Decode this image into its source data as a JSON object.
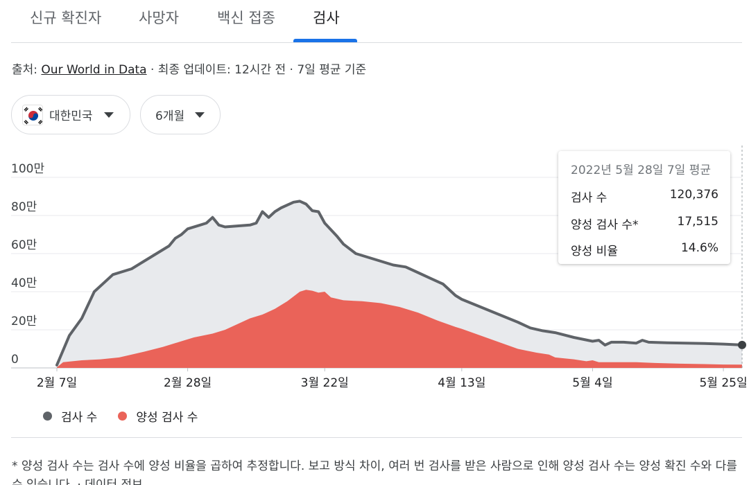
{
  "tabs": [
    {
      "label": "신규 확진자",
      "active": false
    },
    {
      "label": "사망자",
      "active": false
    },
    {
      "label": "백신 접종",
      "active": false
    },
    {
      "label": "검사",
      "active": true
    }
  ],
  "source": {
    "prefix": "출처: ",
    "link": "Our World in Data",
    "suffix": " · 최종 업데이트: 12시간 전 · 7일 평균 기준"
  },
  "filters": {
    "country": "대한민국",
    "period": "6개월"
  },
  "colors": {
    "tests_line": "#5f6368",
    "tests_fill": "#e8eaed",
    "positive_fill": "#ea6359",
    "tab_active": "#1a73e8"
  },
  "tooltip": {
    "title": "2022년 5월 28일 7일 평균",
    "rows": [
      {
        "label": "검사 수",
        "value": "120,376"
      },
      {
        "label": "양성 검사 수*",
        "value": "17,515"
      },
      {
        "label": "양성 비율",
        "value": "14.6%"
      }
    ]
  },
  "legend": [
    {
      "label": "검사 수",
      "color": "#5f6368"
    },
    {
      "label": "양성 검사 수",
      "color": "#ea6359"
    }
  ],
  "footnote": "* 양성 검사 수는 검사 수에 양성 비율을 곱하여 추정합니다. 보고 방식 차이, 여러 번 검사를 받은 사람으로 인해 양성 검사 수는 양성 확진 수와 다를 수 있습니다. · 데이터 정보",
  "chart_data": {
    "type": "area",
    "x_start": "2022-02-07",
    "x_end": "2022-05-28",
    "ylim": [
      0,
      1000000
    ],
    "y_ticks": [
      {
        "value": 0,
        "label": "0"
      },
      {
        "value": 200000,
        "label": "20만"
      },
      {
        "value": 400000,
        "label": "40만"
      },
      {
        "value": 600000,
        "label": "60만"
      },
      {
        "value": 800000,
        "label": "80만"
      },
      {
        "value": 1000000,
        "label": "100만"
      }
    ],
    "x_ticks": [
      {
        "date": "2022-02-07",
        "label": "2월 7일"
      },
      {
        "date": "2022-02-28",
        "label": "2월 28일"
      },
      {
        "date": "2022-03-22",
        "label": "3월 22일"
      },
      {
        "date": "2022-04-13",
        "label": "4월 13일"
      },
      {
        "date": "2022-05-04",
        "label": "5월 4일"
      },
      {
        "date": "2022-05-25",
        "label": "5월 25일"
      }
    ],
    "grid": true,
    "series": [
      {
        "name": "검사 수",
        "points": [
          [
            "2022-02-07",
            15000
          ],
          [
            "2022-02-09",
            170000
          ],
          [
            "2022-02-11",
            260000
          ],
          [
            "2022-02-13",
            400000
          ],
          [
            "2022-02-16",
            490000
          ],
          [
            "2022-02-19",
            520000
          ],
          [
            "2022-02-21",
            560000
          ],
          [
            "2022-02-23",
            600000
          ],
          [
            "2022-02-25",
            640000
          ],
          [
            "2022-02-26",
            680000
          ],
          [
            "2022-02-27",
            700000
          ],
          [
            "2022-02-28",
            730000
          ],
          [
            "2022-03-02",
            750000
          ],
          [
            "2022-03-03",
            760000
          ],
          [
            "2022-03-04",
            790000
          ],
          [
            "2022-03-05",
            750000
          ],
          [
            "2022-03-06",
            740000
          ],
          [
            "2022-03-08",
            745000
          ],
          [
            "2022-03-10",
            750000
          ],
          [
            "2022-03-11",
            760000
          ],
          [
            "2022-03-12",
            820000
          ],
          [
            "2022-03-13",
            790000
          ],
          [
            "2022-03-14",
            820000
          ],
          [
            "2022-03-15",
            840000
          ],
          [
            "2022-03-17",
            870000
          ],
          [
            "2022-03-18",
            875000
          ],
          [
            "2022-03-19",
            860000
          ],
          [
            "2022-03-20",
            825000
          ],
          [
            "2022-03-21",
            820000
          ],
          [
            "2022-03-22",
            760000
          ],
          [
            "2022-03-24",
            690000
          ],
          [
            "2022-03-25",
            650000
          ],
          [
            "2022-03-27",
            600000
          ],
          [
            "2022-03-29",
            580000
          ],
          [
            "2022-03-31",
            560000
          ],
          [
            "2022-04-02",
            540000
          ],
          [
            "2022-04-04",
            530000
          ],
          [
            "2022-04-06",
            500000
          ],
          [
            "2022-04-08",
            470000
          ],
          [
            "2022-04-10",
            440000
          ],
          [
            "2022-04-12",
            380000
          ],
          [
            "2022-04-13",
            360000
          ],
          [
            "2022-04-16",
            320000
          ],
          [
            "2022-04-19",
            280000
          ],
          [
            "2022-04-22",
            240000
          ],
          [
            "2022-04-24",
            210000
          ],
          [
            "2022-04-26",
            195000
          ],
          [
            "2022-04-28",
            185000
          ],
          [
            "2022-05-01",
            160000
          ],
          [
            "2022-05-04",
            140000
          ],
          [
            "2022-05-05",
            145000
          ],
          [
            "2022-05-06",
            120000
          ],
          [
            "2022-05-07",
            135000
          ],
          [
            "2022-05-09",
            135000
          ],
          [
            "2022-05-11",
            130000
          ],
          [
            "2022-05-12",
            145000
          ],
          [
            "2022-05-13",
            135000
          ],
          [
            "2022-05-16",
            132000
          ],
          [
            "2022-05-19",
            130000
          ],
          [
            "2022-05-22",
            128000
          ],
          [
            "2022-05-25",
            125000
          ],
          [
            "2022-05-28",
            120376
          ]
        ]
      },
      {
        "name": "양성 검사 수",
        "points": [
          [
            "2022-02-07",
            3000
          ],
          [
            "2022-02-08",
            30000
          ],
          [
            "2022-02-11",
            40000
          ],
          [
            "2022-02-14",
            45000
          ],
          [
            "2022-02-17",
            55000
          ],
          [
            "2022-02-19",
            70000
          ],
          [
            "2022-02-21",
            85000
          ],
          [
            "2022-02-24",
            110000
          ],
          [
            "2022-02-27",
            140000
          ],
          [
            "2022-03-01",
            160000
          ],
          [
            "2022-03-04",
            180000
          ],
          [
            "2022-03-06",
            200000
          ],
          [
            "2022-03-08",
            230000
          ],
          [
            "2022-03-10",
            260000
          ],
          [
            "2022-03-12",
            280000
          ],
          [
            "2022-03-14",
            310000
          ],
          [
            "2022-03-16",
            350000
          ],
          [
            "2022-03-18",
            400000
          ],
          [
            "2022-03-19",
            410000
          ],
          [
            "2022-03-20",
            405000
          ],
          [
            "2022-03-21",
            395000
          ],
          [
            "2022-03-22",
            400000
          ],
          [
            "2022-03-23",
            370000
          ],
          [
            "2022-03-25",
            355000
          ],
          [
            "2022-03-28",
            350000
          ],
          [
            "2022-03-31",
            340000
          ],
          [
            "2022-04-03",
            320000
          ],
          [
            "2022-04-06",
            290000
          ],
          [
            "2022-04-09",
            250000
          ],
          [
            "2022-04-12",
            215000
          ],
          [
            "2022-04-13",
            205000
          ],
          [
            "2022-04-16",
            170000
          ],
          [
            "2022-04-19",
            135000
          ],
          [
            "2022-04-22",
            100000
          ],
          [
            "2022-04-25",
            80000
          ],
          [
            "2022-04-27",
            70000
          ],
          [
            "2022-04-28",
            55000
          ],
          [
            "2022-05-01",
            45000
          ],
          [
            "2022-05-03",
            35000
          ],
          [
            "2022-05-04",
            40000
          ],
          [
            "2022-05-05",
            30000
          ],
          [
            "2022-05-08",
            30000
          ],
          [
            "2022-05-11",
            30000
          ],
          [
            "2022-05-14",
            26000
          ],
          [
            "2022-05-18",
            22000
          ],
          [
            "2022-05-22",
            20000
          ],
          [
            "2022-05-25",
            18000
          ],
          [
            "2022-05-28",
            17515
          ]
        ]
      }
    ]
  }
}
